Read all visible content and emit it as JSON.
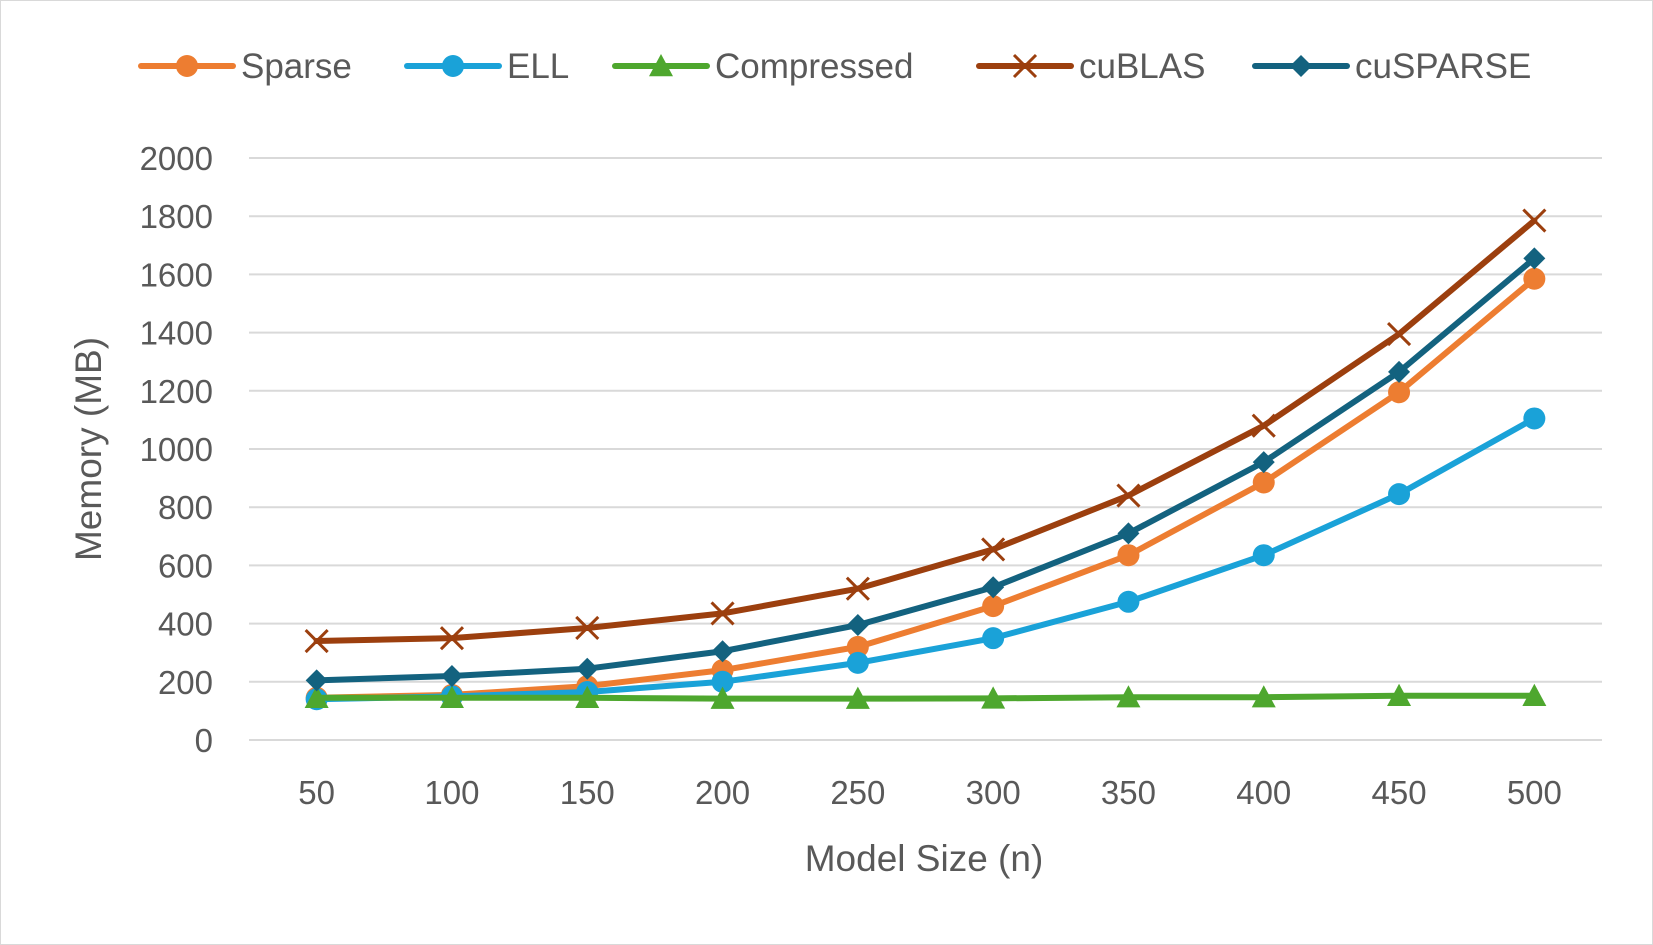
{
  "chart_data": {
    "type": "line",
    "title": "",
    "xlabel": "Model Size (n)",
    "ylabel": "Memory (MB)",
    "categories": [
      "50",
      "100",
      "150",
      "200",
      "250",
      "300",
      "350",
      "400",
      "450",
      "500"
    ],
    "ylim": [
      0,
      2000
    ],
    "yticks": [
      0,
      200,
      400,
      600,
      800,
      1000,
      1200,
      1400,
      1600,
      1800,
      2000
    ],
    "grid": true,
    "legend_position": "top",
    "series": [
      {
        "name": "Sparse",
        "color": "#ed7d31",
        "marker": "circle",
        "values": [
          145,
          155,
          185,
          240,
          320,
          460,
          635,
          885,
          1195,
          1585
        ]
      },
      {
        "name": "ELL",
        "color": "#1aa2d8",
        "marker": "circle",
        "values": [
          140,
          150,
          165,
          200,
          265,
          350,
          475,
          635,
          845,
          1105
        ]
      },
      {
        "name": "Compressed",
        "color": "#4ea72e",
        "marker": "triangle",
        "values": [
          145,
          145,
          145,
          142,
          142,
          143,
          147,
          147,
          152,
          152
        ]
      },
      {
        "name": "cuBLAS",
        "color": "#9c3f0e",
        "marker": "x",
        "values": [
          340,
          350,
          385,
          435,
          520,
          655,
          840,
          1080,
          1395,
          1785
        ]
      },
      {
        "name": "cuSPARSE",
        "color": "#13627f",
        "marker": "diamond",
        "values": [
          205,
          220,
          245,
          305,
          395,
          525,
          710,
          955,
          1265,
          1655
        ]
      }
    ]
  }
}
